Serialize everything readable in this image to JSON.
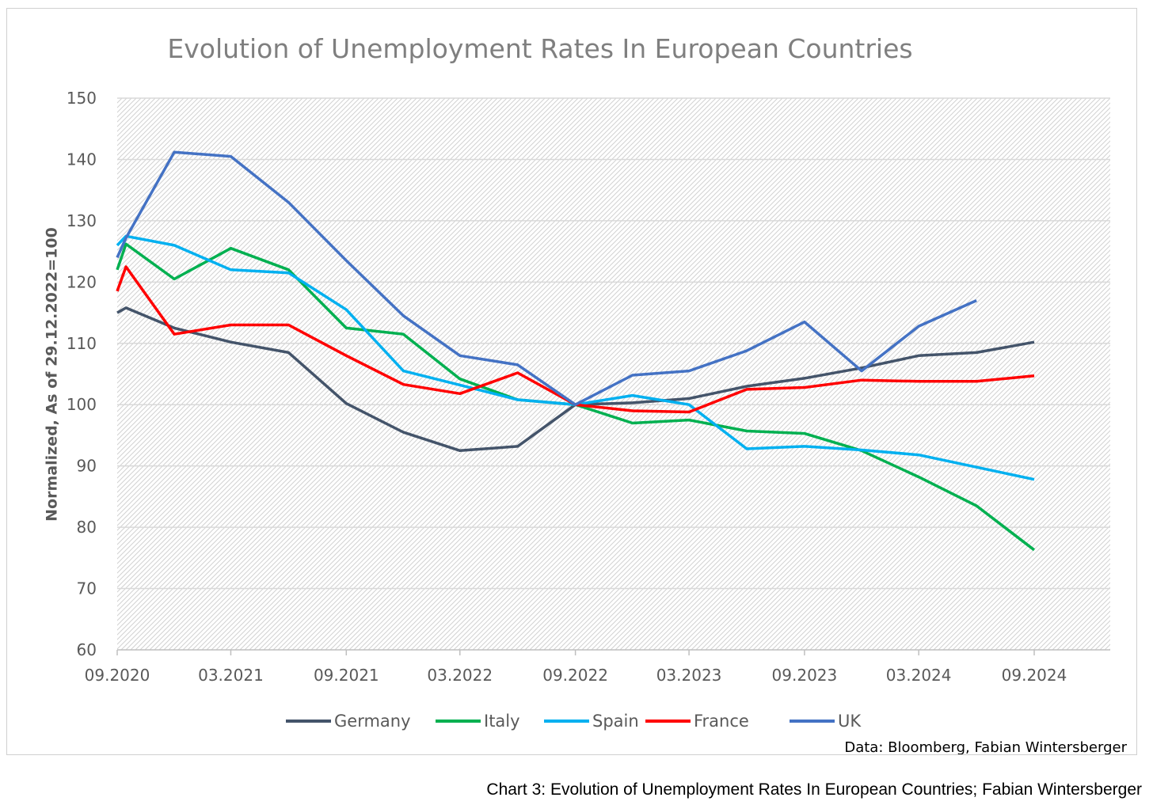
{
  "chart_data": {
    "type": "line",
    "title": "Evolution of Unemployment Rates In European Countries",
    "ylabel": "Normalized, As of 29.12.2022=100",
    "xlabel": "",
    "ylim": [
      60,
      150
    ],
    "yticks": [
      60,
      70,
      80,
      90,
      100,
      110,
      120,
      130,
      140,
      150
    ],
    "x_tick_labels": [
      "09.2020",
      "03.2021",
      "09.2021",
      "03.2022",
      "09.2022",
      "03.2023",
      "09.2023",
      "03.2024",
      "09.2024"
    ],
    "grid": true,
    "legend_position": "bottom",
    "source_note": "Data: Bloomberg, Fabian Wintersberger",
    "series": [
      {
        "name": "Germany",
        "color": "#44546a",
        "points": [
          [
            "2020-09-01",
            115
          ],
          [
            "2020-09-15",
            115.8
          ],
          [
            "2020-12-01",
            112.5
          ],
          [
            "2021-03-01",
            110.2
          ],
          [
            "2021-06-01",
            108.5
          ],
          [
            "2021-09-01",
            100.2
          ],
          [
            "2021-12-01",
            95.5
          ],
          [
            "2022-03-01",
            92.5
          ],
          [
            "2022-06-01",
            93.2
          ],
          [
            "2022-09-01",
            100
          ],
          [
            "2022-12-01",
            100.3
          ],
          [
            "2023-03-01",
            101
          ],
          [
            "2023-06-01",
            103
          ],
          [
            "2023-09-01",
            104.3
          ],
          [
            "2023-12-01",
            106
          ],
          [
            "2024-03-01",
            108
          ],
          [
            "2024-06-01",
            108.5
          ],
          [
            "2024-09-01",
            110.2
          ]
        ]
      },
      {
        "name": "Italy",
        "color": "#00b050",
        "points": [
          [
            "2020-09-01",
            122
          ],
          [
            "2020-09-15",
            126.2
          ],
          [
            "2020-12-01",
            120.5
          ],
          [
            "2021-03-01",
            125.5
          ],
          [
            "2021-06-01",
            122
          ],
          [
            "2021-09-01",
            112.5
          ],
          [
            "2021-12-01",
            111.5
          ],
          [
            "2022-03-01",
            104.2
          ],
          [
            "2022-06-01",
            100.8
          ],
          [
            "2022-09-01",
            100
          ],
          [
            "2022-12-01",
            97
          ],
          [
            "2023-03-01",
            97.5
          ],
          [
            "2023-06-01",
            95.7
          ],
          [
            "2023-09-01",
            95.3
          ],
          [
            "2023-12-01",
            92.5
          ],
          [
            "2024-03-01",
            88.2
          ],
          [
            "2024-06-01",
            83.5
          ],
          [
            "2024-09-01",
            76.3
          ]
        ]
      },
      {
        "name": "Spain",
        "color": "#00b0f0",
        "points": [
          [
            "2020-09-01",
            126
          ],
          [
            "2020-09-15",
            127.5
          ],
          [
            "2020-12-01",
            126
          ],
          [
            "2021-03-01",
            122
          ],
          [
            "2021-06-01",
            121.5
          ],
          [
            "2021-09-01",
            115.5
          ],
          [
            "2021-12-01",
            105.5
          ],
          [
            "2022-03-01",
            103.2
          ],
          [
            "2022-06-01",
            100.8
          ],
          [
            "2022-09-01",
            100
          ],
          [
            "2022-12-01",
            101.5
          ],
          [
            "2023-03-01",
            100
          ],
          [
            "2023-06-01",
            92.8
          ],
          [
            "2023-09-01",
            93.2
          ],
          [
            "2023-12-01",
            92.6
          ],
          [
            "2024-03-01",
            91.8
          ],
          [
            "2024-06-01",
            89.8
          ],
          [
            "2024-09-01",
            87.8
          ]
        ]
      },
      {
        "name": "France",
        "color": "#ff0000",
        "points": [
          [
            "2020-09-01",
            118.5
          ],
          [
            "2020-09-15",
            122.5
          ],
          [
            "2020-12-01",
            111.5
          ],
          [
            "2021-03-01",
            113
          ],
          [
            "2021-06-01",
            113
          ],
          [
            "2021-09-01",
            108
          ],
          [
            "2021-12-01",
            103.3
          ],
          [
            "2022-03-01",
            101.8
          ],
          [
            "2022-06-01",
            105.2
          ],
          [
            "2022-09-01",
            100
          ],
          [
            "2022-12-01",
            99
          ],
          [
            "2023-03-01",
            98.8
          ],
          [
            "2023-06-01",
            102.5
          ],
          [
            "2023-09-01",
            102.8
          ],
          [
            "2023-12-01",
            104
          ],
          [
            "2024-03-01",
            103.8
          ],
          [
            "2024-06-01",
            103.8
          ],
          [
            "2024-09-01",
            104.7
          ]
        ]
      },
      {
        "name": "UK",
        "color": "#4472c4",
        "points": [
          [
            "2020-09-01",
            124
          ],
          [
            "2020-09-15",
            127.2
          ],
          [
            "2020-12-01",
            141.2
          ],
          [
            "2021-03-01",
            140.5
          ],
          [
            "2021-06-01",
            133
          ],
          [
            "2021-09-01",
            123.5
          ],
          [
            "2021-12-01",
            114.5
          ],
          [
            "2022-03-01",
            108
          ],
          [
            "2022-06-01",
            106.5
          ],
          [
            "2022-09-01",
            100
          ],
          [
            "2022-12-01",
            104.8
          ],
          [
            "2023-03-01",
            105.5
          ],
          [
            "2023-06-01",
            108.8
          ],
          [
            "2023-09-01",
            113.5
          ],
          [
            "2023-12-01",
            105.5
          ],
          [
            "2024-03-01",
            112.8
          ],
          [
            "2024-06-01",
            117
          ]
        ]
      }
    ]
  },
  "caption": "Chart 3: Evolution of Unemployment Rates In European Countries; Fabian Wintersberger"
}
